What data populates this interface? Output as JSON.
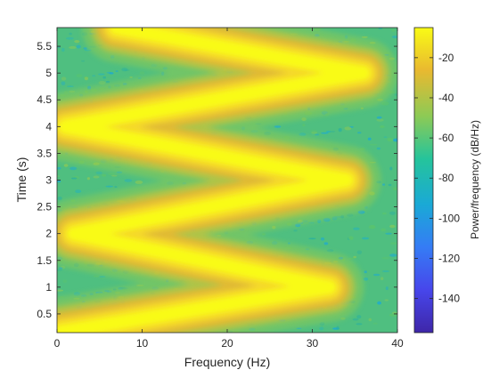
{
  "chart_data": {
    "type": "heatmap",
    "xlabel": "Frequency (Hz)",
    "ylabel": "Time (s)",
    "xlim": [
      0,
      40
    ],
    "ylim": [
      0.15,
      5.85
    ],
    "xticks": [
      0,
      10,
      20,
      30,
      40
    ],
    "yticks": [
      0.5,
      1,
      1.5,
      2,
      2.5,
      3,
      3.5,
      4,
      4.5,
      5,
      5.5
    ],
    "colorbar": {
      "label": "Power/frequency (dB/Hz)",
      "range": [
        -157,
        -5
      ],
      "ticks": [
        -140,
        -120,
        -100,
        -80,
        -60,
        -40,
        -20
      ]
    },
    "ridge_path": [
      {
        "time": 0.15,
        "freq": 0
      },
      {
        "time": 1.0,
        "freq": 32
      },
      {
        "time": 2.0,
        "freq": 2
      },
      {
        "time": 3.0,
        "freq": 34
      },
      {
        "time": 4.0,
        "freq": 1
      },
      {
        "time": 5.0,
        "freq": 36
      },
      {
        "time": 5.85,
        "freq": 7
      }
    ],
    "ridge_peak_db": -5,
    "background_db": -65,
    "colormap": [
      "#3e26a8",
      "#4746eb",
      "#357cf5",
      "#1aa9d6",
      "#25c49b",
      "#8dca55",
      "#e9b930",
      "#f9fb15"
    ]
  }
}
